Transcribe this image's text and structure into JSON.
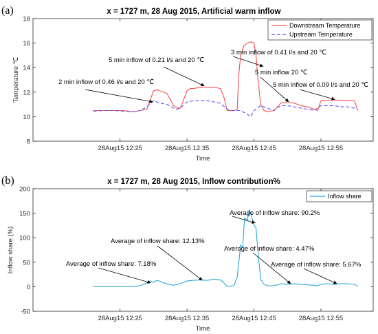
{
  "chart_data": [
    {
      "type": "line",
      "panel_label": "(a)",
      "title": "x = 1727 m, 28 Aug 2015, Artificial warm inflow",
      "xlabel": "Time",
      "ylabel": "Temperature ℃",
      "ylim": [
        8,
        18
      ],
      "yticks": [
        8,
        10,
        12,
        14,
        16,
        18
      ],
      "xlim_minutes": [
        12.0,
        62.8
      ],
      "xticks": [
        {
          "minute": 25,
          "label": "28Aug15 12:25"
        },
        {
          "minute": 35,
          "label": "28Aug15 12:35"
        },
        {
          "minute": 45,
          "label": "28Aug15 12:45"
        },
        {
          "minute": 55,
          "label": "28Aug15 12:55"
        }
      ],
      "legend_position": "top-right",
      "series": [
        {
          "name": "Downstream Temperature",
          "color": "#ff4d4d",
          "dash": "solid",
          "x": [
            21.0,
            22.5,
            24.0,
            25.5,
            27.0,
            28.0,
            29.0,
            30.0,
            30.5,
            31.0,
            32.0,
            33.0,
            33.5,
            34.0,
            35.0,
            35.5,
            36.0,
            37.0,
            38.0,
            39.0,
            40.0,
            40.5,
            41.0,
            42.0,
            42.5,
            42.7,
            43.0,
            43.5,
            44.0,
            44.5,
            45.0,
            45.3,
            45.6,
            46.0,
            46.5,
            47.0,
            48.0,
            49.0,
            50.0,
            51.0,
            52.0,
            53.0,
            54.0,
            54.5,
            55.0,
            56.0,
            57.0,
            58.0,
            59.0,
            60.0,
            60.5
          ],
          "y": [
            10.5,
            10.5,
            10.5,
            10.5,
            10.4,
            10.5,
            10.6,
            12.1,
            12.2,
            12.1,
            11.9,
            10.9,
            10.7,
            10.7,
            12.1,
            12.3,
            12.3,
            12.4,
            12.4,
            12.4,
            12.3,
            11.6,
            10.5,
            10.5,
            10.6,
            13.2,
            15.0,
            15.8,
            16.0,
            16.1,
            16.0,
            15.0,
            13.0,
            11.0,
            10.5,
            10.4,
            10.5,
            11.1,
            11.2,
            11.1,
            10.9,
            10.8,
            10.6,
            10.5,
            11.3,
            11.35,
            11.35,
            11.35,
            11.3,
            11.3,
            10.5
          ]
        },
        {
          "name": "Upstream Temperature",
          "color": "#5050ff",
          "dash": "dashed",
          "x": [
            21.0,
            22.5,
            24.0,
            25.5,
            27.0,
            28.0,
            29.0,
            30.0,
            31.0,
            32.0,
            33.0,
            33.5,
            34.0,
            35.0,
            36.0,
            37.0,
            38.0,
            39.0,
            40.0,
            41.0,
            42.0,
            43.0,
            44.0,
            44.5,
            45.0,
            46.0,
            47.0,
            48.0,
            49.0,
            50.0,
            51.0,
            52.0,
            53.0,
            54.0,
            55.0,
            56.0,
            57.0,
            58.0,
            59.0,
            60.0,
            60.5
          ],
          "y": [
            10.45,
            10.5,
            10.5,
            10.45,
            10.4,
            10.5,
            10.8,
            11.3,
            11.1,
            11.0,
            10.7,
            10.6,
            10.7,
            11.2,
            11.3,
            11.3,
            11.3,
            11.2,
            11.1,
            10.6,
            10.5,
            10.5,
            10.2,
            10.0,
            10.5,
            10.9,
            10.7,
            10.5,
            10.9,
            10.9,
            10.8,
            10.7,
            10.6,
            10.5,
            10.9,
            10.9,
            10.9,
            10.8,
            10.8,
            10.7,
            10.6
          ]
        }
      ],
      "annotations": [
        {
          "text": "2 min inflow of 0.46 l/s and 20 ℃",
          "x": 29.9,
          "y": 11.2
        },
        {
          "text": "5 min inflow of 0.21 l/s and 20 ℃",
          "x": 37.6,
          "y": 12.5
        },
        {
          "text": "3 min inflow of 0.41 l/s and 20 ℃",
          "x": 46.4,
          "y": 14.1
        },
        {
          "text": "5 min inflow 20 ℃",
          "x": 50.2,
          "y": 11.2
        },
        {
          "text": "5 min inflow of 0.09 l/s and 20 ℃",
          "x": 57.1,
          "y": 11.4
        }
      ]
    },
    {
      "type": "line",
      "panel_label": "(b)",
      "title": "x = 1727 m, 28 Aug 2015, Inflow contribution%",
      "xlabel": "Time",
      "ylabel": "Inflow share (%)",
      "ylim": [
        -50,
        200
      ],
      "yticks": [
        -50,
        0,
        50,
        100,
        150,
        200
      ],
      "xlim_minutes": [
        12.0,
        62.8
      ],
      "xticks": [
        {
          "minute": 25,
          "label": "28Aug15 12:25"
        },
        {
          "minute": 35,
          "label": "28Aug15 12:35"
        },
        {
          "minute": 45,
          "label": "28Aug15 12:45"
        },
        {
          "minute": 55,
          "label": "28Aug15 12:55"
        }
      ],
      "legend_position": "top-right",
      "series": [
        {
          "name": "Inflow share",
          "color": "#27a7d8",
          "dash": "solid",
          "x": [
            21.0,
            22.5,
            24.0,
            25.5,
            27.0,
            28.0,
            29.0,
            29.5,
            30.0,
            30.5,
            31.0,
            31.5,
            32.0,
            33.0,
            34.0,
            35.0,
            36.0,
            37.0,
            38.0,
            39.0,
            40.0,
            40.5,
            41.0,
            42.0,
            42.5,
            43.0,
            43.3,
            43.6,
            44.0,
            44.3,
            44.6,
            45.0,
            45.3,
            45.6,
            46.0,
            46.5,
            47.0,
            48.0,
            49.0,
            50.0,
            51.0,
            52.0,
            53.0,
            54.0,
            54.5,
            55.0,
            56.0,
            57.0,
            58.0,
            59.0,
            60.0,
            60.5
          ],
          "y": [
            0,
            1,
            0,
            1,
            1,
            2,
            8,
            12,
            9,
            13,
            11,
            8,
            6,
            3,
            6,
            12,
            13,
            14,
            13,
            15,
            14,
            8,
            1,
            2,
            20,
            85,
            80,
            140,
            135,
            157,
            145,
            125,
            120,
            70,
            15,
            5,
            2,
            2,
            6,
            5,
            6,
            5,
            4,
            3,
            2,
            5,
            6,
            5,
            6,
            6,
            5,
            1
          ]
        }
      ],
      "annotations": [
        {
          "text": "Average of inflow share: 7.18%",
          "x": 29.6,
          "y": 8
        },
        {
          "text": "Average of inflow share: 12.13%",
          "x": 37.3,
          "y": 13
        },
        {
          "text": "Average of inflow share: 90.2%",
          "x": 45.2,
          "y": 130
        },
        {
          "text": "Average of inflow share: 4.47%",
          "x": 50.5,
          "y": 6
        },
        {
          "text": "Average of inflow share: 5.67%",
          "x": 57.4,
          "y": 6
        }
      ]
    }
  ]
}
